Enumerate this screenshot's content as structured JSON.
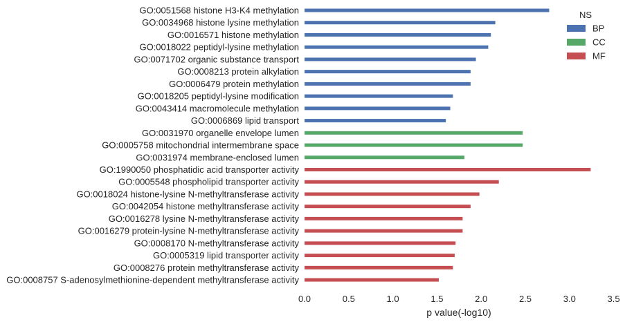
{
  "chart_data": {
    "type": "bar",
    "orientation": "horizontal",
    "xlabel": "p value(-log10)",
    "ylabel": "",
    "xlim": [
      0,
      3.5
    ],
    "xticks": [
      "0.0",
      "0.5",
      "1.0",
      "1.5",
      "2.0",
      "2.5",
      "3.0",
      "3.5"
    ],
    "grid": false,
    "legend": {
      "title": "NS",
      "placement": "top-right",
      "entries": [
        {
          "name": "BP",
          "color": "#4c72b0"
        },
        {
          "name": "CC",
          "color": "#55a868"
        },
        {
          "name": "MF",
          "color": "#c44e52"
        }
      ]
    },
    "categories": [
      "GO:0051568 histone H3-K4 methylation",
      "GO:0034968 histone lysine methylation",
      "GO:0016571 histone methylation",
      "GO:0018022 peptidyl-lysine methylation",
      "GO:0071702 organic substance transport",
      "GO:0008213 protein alkylation",
      "GO:0006479 protein methylation",
      "GO:0018205 peptidyl-lysine modification",
      "GO:0043414 macromolecule methylation",
      "GO:0006869 lipid transport",
      "GO:0031970 organelle envelope lumen",
      "GO:0005758 mitochondrial intermembrane space",
      "GO:0031974 membrane-enclosed lumen",
      "GO:1990050 phosphatidic acid transporter activity",
      "GO:0005548 phospholipid transporter activity",
      "GO:0018024 histone-lysine N-methyltransferase activity",
      "GO:0042054 histone methyltransferase activity",
      "GO:0016278 lysine N-methyltransferase activity",
      "GO:0016279 protein-lysine N-methyltransferase activity",
      "GO:0008170 N-methyltransferase activity",
      "GO:0005319 lipid transporter activity",
      "GO:0008276 protein methyltransferase activity",
      "GO:0008757 S-adenosylmethionine-dependent methyltransferase activity"
    ],
    "namespaces": [
      "BP",
      "BP",
      "BP",
      "BP",
      "BP",
      "BP",
      "BP",
      "BP",
      "BP",
      "BP",
      "CC",
      "CC",
      "CC",
      "MF",
      "MF",
      "MF",
      "MF",
      "MF",
      "MF",
      "MF",
      "MF",
      "MF",
      "MF"
    ],
    "values": [
      2.77,
      2.16,
      2.11,
      2.08,
      1.94,
      1.88,
      1.88,
      1.68,
      1.65,
      1.6,
      2.47,
      2.47,
      1.81,
      3.24,
      2.2,
      1.98,
      1.88,
      1.79,
      1.79,
      1.71,
      1.7,
      1.68,
      1.52
    ]
  }
}
